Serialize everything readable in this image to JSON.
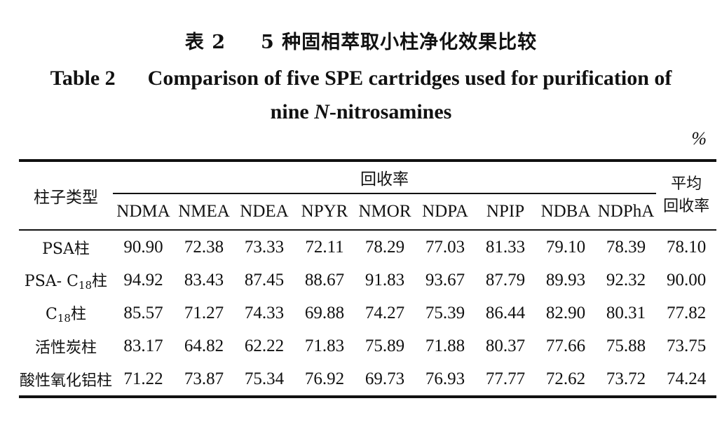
{
  "caption": {
    "cn_label": "表 2",
    "cn_title": "5 种固相萃取小柱净化效果比较",
    "en_label": "Table 2",
    "en_title_part1": "Comparison of five SPE cartridges used for purification of",
    "en_title_part2_prefix": "nine ",
    "en_title_italic": "N",
    "en_title_part2_suffix": "-nitrosamines"
  },
  "unit": "%",
  "table": {
    "type_header": "柱子类型",
    "group_header": "回收率",
    "avg_header_line1": "平均",
    "avg_header_line2": "回收率",
    "columns": [
      "NDMA",
      "NMEA",
      "NDEA",
      "NPYR",
      "NMOR",
      "NDPA",
      "NPIP",
      "NDBA",
      "NDPhA"
    ],
    "rows": [
      {
        "pre": "PSA柱",
        "sub": "",
        "post": "",
        "values": [
          "90.90",
          "72.38",
          "73.33",
          "72.11",
          "78.29",
          "77.03",
          "81.33",
          "79.10",
          "78.39"
        ],
        "avg": "78.10"
      },
      {
        "pre": "PSA- C",
        "sub": "18",
        "post": "柱",
        "values": [
          "94.92",
          "83.43",
          "87.45",
          "88.67",
          "91.83",
          "93.67",
          "87.79",
          "89.93",
          "92.32"
        ],
        "avg": "90.00"
      },
      {
        "pre": "C",
        "sub": "18",
        "post": "柱",
        "values": [
          "85.57",
          "71.27",
          "74.33",
          "69.88",
          "74.27",
          "75.39",
          "86.44",
          "82.90",
          "80.31"
        ],
        "avg": "77.82"
      },
      {
        "pre": "活性炭柱",
        "sub": "",
        "post": "",
        "values": [
          "83.17",
          "64.82",
          "62.22",
          "71.83",
          "75.89",
          "71.88",
          "80.37",
          "77.66",
          "75.88"
        ],
        "avg": "73.75"
      },
      {
        "pre": "酸性氧化铝柱",
        "sub": "",
        "post": "",
        "values": [
          "71.22",
          "73.87",
          "75.34",
          "76.92",
          "69.73",
          "76.93",
          "77.77",
          "72.62",
          "73.72"
        ],
        "avg": "74.24"
      }
    ]
  }
}
